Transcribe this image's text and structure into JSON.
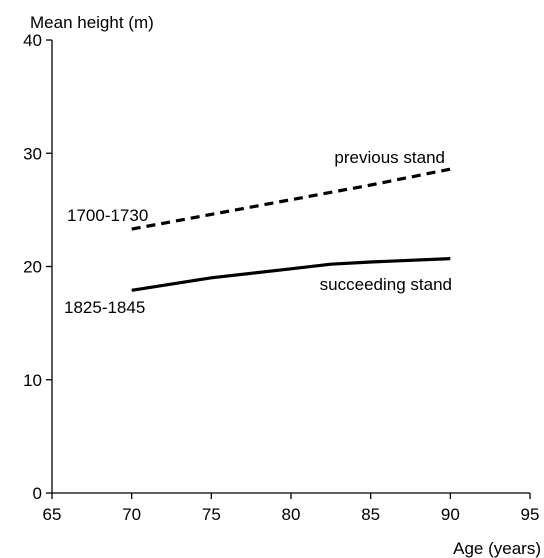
{
  "chart_data": {
    "type": "line",
    "title": "",
    "xlabel": "Age (years)",
    "ylabel": "Mean height (m)",
    "xlim": [
      65,
      95
    ],
    "ylim": [
      0,
      40
    ],
    "xticks": [
      65,
      70,
      75,
      80,
      85,
      90,
      95
    ],
    "yticks": [
      0,
      10,
      20,
      30,
      40
    ],
    "grid": false,
    "series": [
      {
        "name": "previous stand",
        "period": "1700-1730",
        "style": "dashed",
        "color": "#000000",
        "x": [
          70,
          75,
          80,
          85,
          90
        ],
        "y": [
          23.3,
          24.6,
          25.9,
          27.2,
          28.6
        ]
      },
      {
        "name": "succeeding stand",
        "period": "1825-1845",
        "style": "solid",
        "color": "#000000",
        "x": [
          70,
          75,
          80,
          82.5,
          85,
          90
        ],
        "y": [
          17.9,
          19.0,
          19.8,
          20.2,
          20.4,
          20.7
        ]
      }
    ]
  }
}
